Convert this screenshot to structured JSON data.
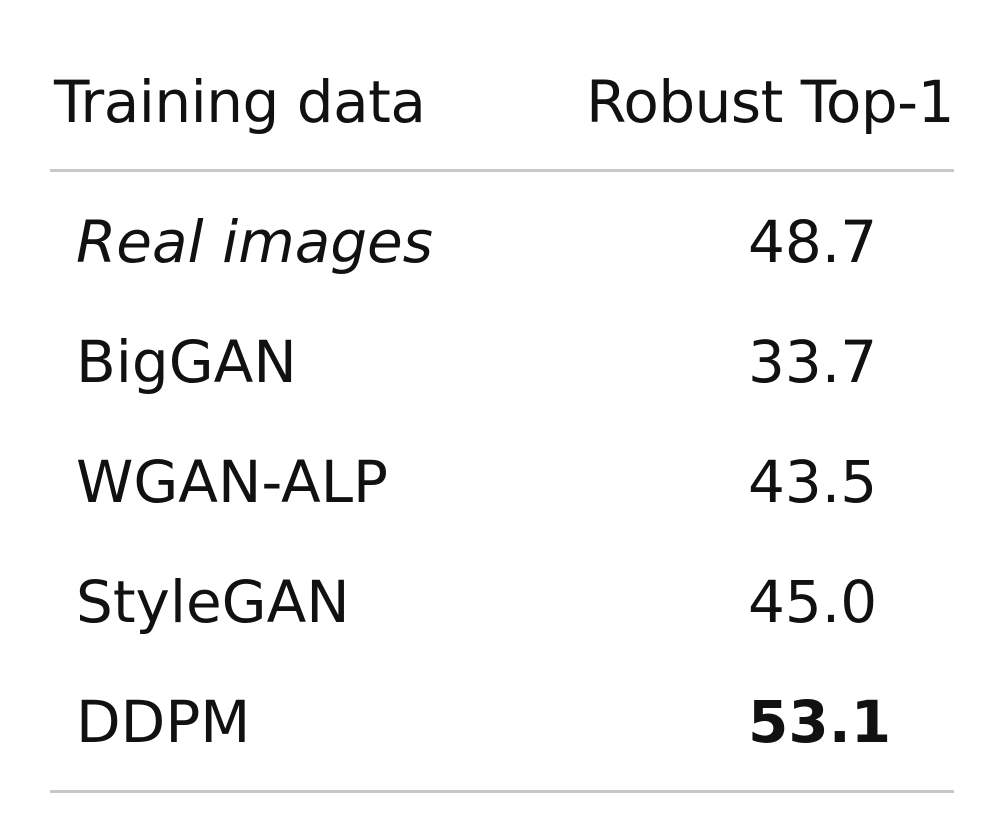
{
  "table": {
    "headers": {
      "training_data": "Training data",
      "robust_top1": "Robust Top-1"
    },
    "rows": [
      {
        "name": "Real images",
        "value": "48.7"
      },
      {
        "name": "BigGAN",
        "value": "33.7"
      },
      {
        "name": "WGAN-ALP",
        "value": "43.5"
      },
      {
        "name": "StyleGAN",
        "value": "45.0"
      },
      {
        "name": "DDPM",
        "value": "53.1"
      }
    ],
    "styles": {
      "italic_row": "Real images",
      "bold_value_row": "DDPM"
    },
    "rule_color": "#c8c8c8"
  }
}
